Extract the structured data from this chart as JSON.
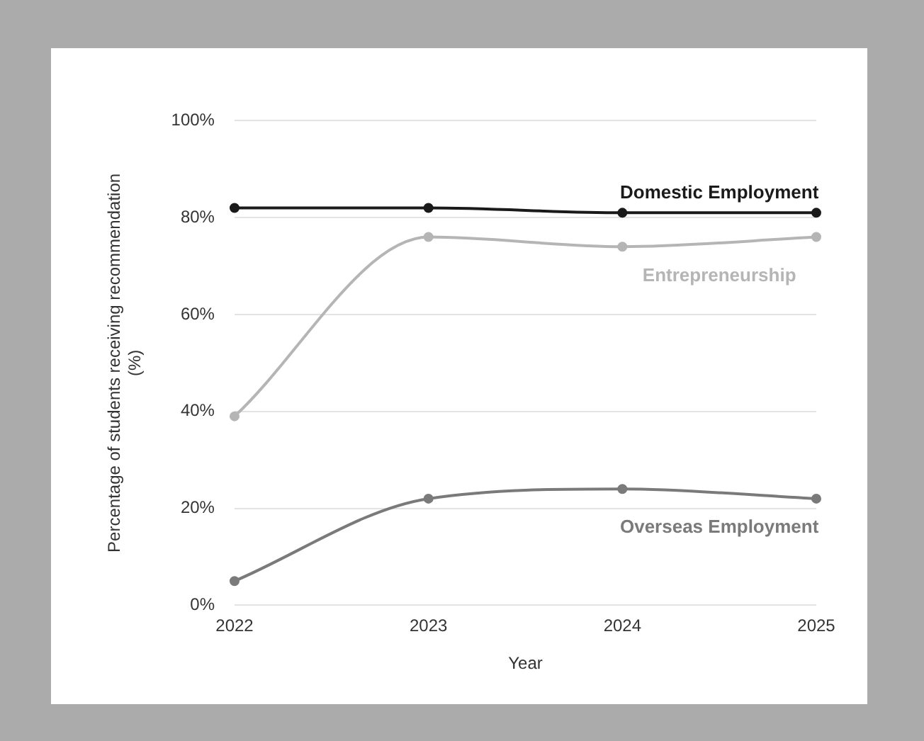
{
  "chart_data": {
    "type": "line",
    "xlabel": "Year",
    "ylabel": "Percentage of students receiving recommendation (%)",
    "categories": [
      "2022",
      "2023",
      "2024",
      "2025"
    ],
    "series": [
      {
        "name": "Domestic Employment",
        "color": "#1a1a1a",
        "values": [
          82,
          82,
          81,
          81
        ]
      },
      {
        "name": "Entrepreneurship",
        "color": "#b5b5b5",
        "values": [
          39,
          76,
          74,
          76
        ]
      },
      {
        "name": "Overseas Employment",
        "color": "#7a7a7a",
        "values": [
          5,
          22,
          24,
          22
        ]
      }
    ],
    "ylim": [
      0,
      100
    ],
    "yticks": [
      {
        "value": 0,
        "label": "0%"
      },
      {
        "value": 20,
        "label": "20%"
      },
      {
        "value": 40,
        "label": "40%"
      },
      {
        "value": 60,
        "label": "60%"
      },
      {
        "value": 80,
        "label": "80%"
      },
      {
        "value": 100,
        "label": "100%"
      }
    ],
    "grid": "y",
    "legend": false,
    "marker": "circle",
    "line_style": "solid"
  }
}
